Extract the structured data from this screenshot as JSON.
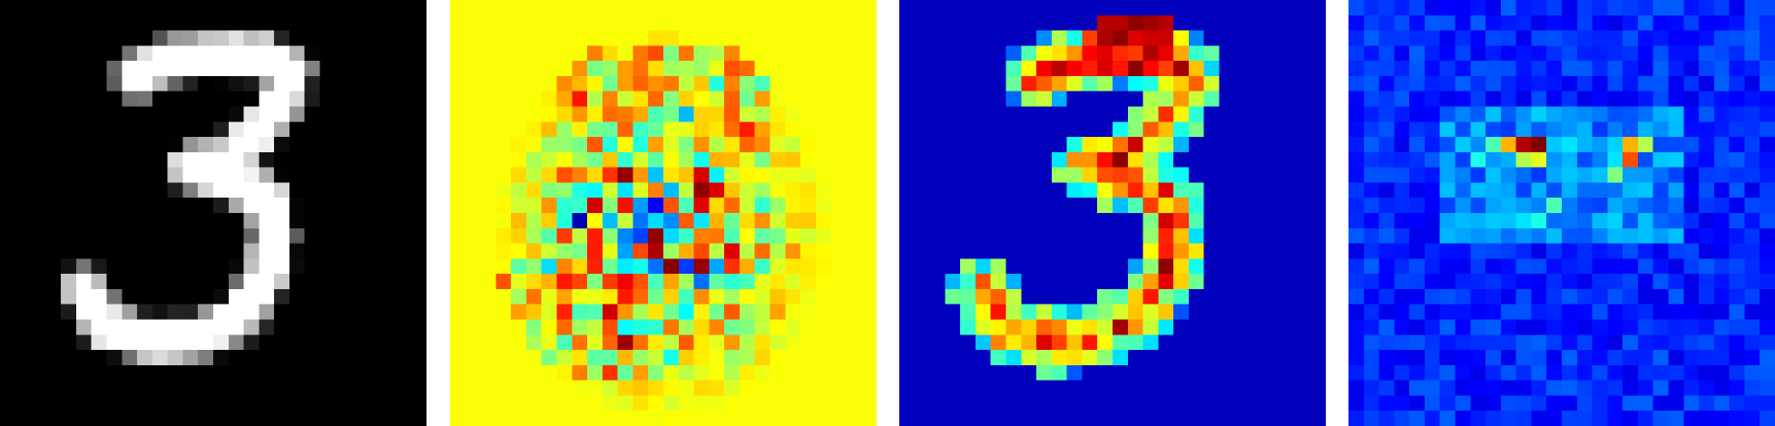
{
  "figure": {
    "panels": [
      {
        "name": "input-digit",
        "colormap": "gray",
        "background": "#000000"
      },
      {
        "name": "signed-attribution",
        "colormap": "jet",
        "background": "#adff5a"
      },
      {
        "name": "positive-activation",
        "colormap": "jet",
        "background": "#00008b"
      },
      {
        "name": "sparse-attribution",
        "colormap": "jet",
        "background": "#0000b4"
      }
    ],
    "grid": 28
  }
}
